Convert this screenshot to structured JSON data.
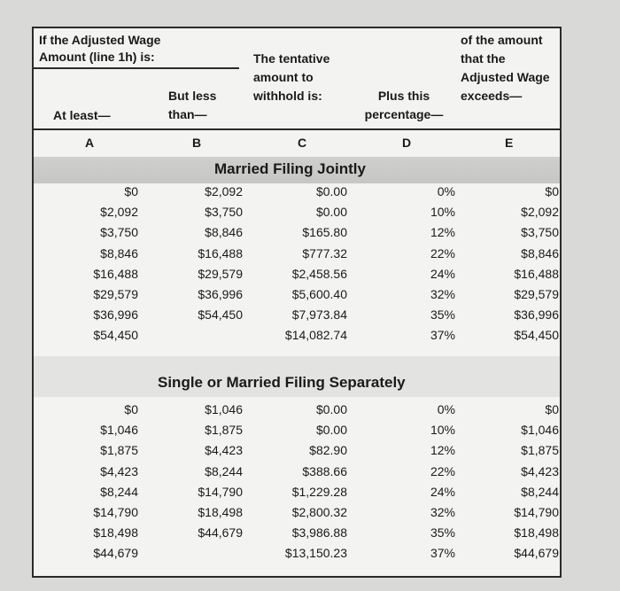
{
  "header": {
    "title": "If the Adjusted Wage Amount (line 1h) is:",
    "col_at_least": "At least—",
    "col_but_less": "But less than—",
    "col_tentative": "The tentative amount to withhold is:",
    "col_plus_pct": "Plus this percentage—",
    "col_exceeds": "of the amount that the Adjusted Wage exceeds—",
    "letters": [
      "A",
      "B",
      "C",
      "D",
      "E"
    ]
  },
  "sections": [
    {
      "title": "Married Filing Jointly",
      "rows": [
        [
          "$0",
          "$2,092",
          "$0.00",
          "0%",
          "$0"
        ],
        [
          "$2,092",
          "$3,750",
          "$0.00",
          "10%",
          "$2,092"
        ],
        [
          "$3,750",
          "$8,846",
          "$165.80",
          "12%",
          "$3,750"
        ],
        [
          "$8,846",
          "$16,488",
          "$777.32",
          "22%",
          "$8,846"
        ],
        [
          "$16,488",
          "$29,579",
          "$2,458.56",
          "24%",
          "$16,488"
        ],
        [
          "$29,579",
          "$36,996",
          "$5,600.40",
          "32%",
          "$29,579"
        ],
        [
          "$36,996",
          "$54,450",
          "$7,973.84",
          "35%",
          "$36,996"
        ],
        [
          "$54,450",
          "",
          "$14,082.74",
          "37%",
          "$54,450"
        ]
      ]
    },
    {
      "title": "Single or Married Filing Separately",
      "rows": [
        [
          "$0",
          "$1,046",
          "$0.00",
          "0%",
          "$0"
        ],
        [
          "$1,046",
          "$1,875",
          "$0.00",
          "10%",
          "$1,046"
        ],
        [
          "$1,875",
          "$4,423",
          "$82.90",
          "12%",
          "$1,875"
        ],
        [
          "$4,423",
          "$8,244",
          "$388.66",
          "22%",
          "$4,423"
        ],
        [
          "$8,244",
          "$14,790",
          "$1,229.28",
          "24%",
          "$8,244"
        ],
        [
          "$14,790",
          "$18,498",
          "$2,800.32",
          "32%",
          "$14,790"
        ],
        [
          "$18,498",
          "$44,679",
          "$3,986.88",
          "35%",
          "$18,498"
        ],
        [
          "$44,679",
          "",
          "$13,150.23",
          "37%",
          "$44,679"
        ]
      ]
    }
  ]
}
